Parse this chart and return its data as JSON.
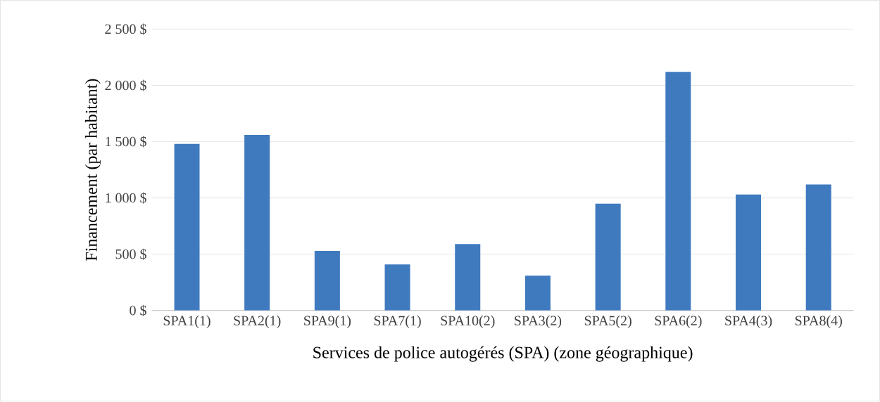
{
  "chart_data": {
    "type": "bar",
    "xlabel": "Services de police autogérés (SPA) (zone géographique)",
    "ylabel": "Financement (par habitant)",
    "categories": [
      "SPA1(1)",
      "SPA2(1)",
      "SPA9(1)",
      "SPA7(1)",
      "SPA10(2)",
      "SPA3(2)",
      "SPA5(2)",
      "SPA6(2)",
      "SPA4(3)",
      "SPA8(4)"
    ],
    "values": [
      1480,
      1560,
      530,
      410,
      590,
      310,
      950,
      2120,
      1030,
      1120
    ],
    "color": "#3f7abf",
    "ylim": [
      0,
      2500
    ],
    "yticks": [
      {
        "value": 0,
        "label": "0 $"
      },
      {
        "value": 500,
        "label": "500 $"
      },
      {
        "value": 1000,
        "label": "1 000 $"
      },
      {
        "value": 1500,
        "label": "1 500 $"
      },
      {
        "value": 2000,
        "label": "2 000 $"
      },
      {
        "value": 2500,
        "label": "2 500 $"
      }
    ],
    "grid": "y"
  }
}
